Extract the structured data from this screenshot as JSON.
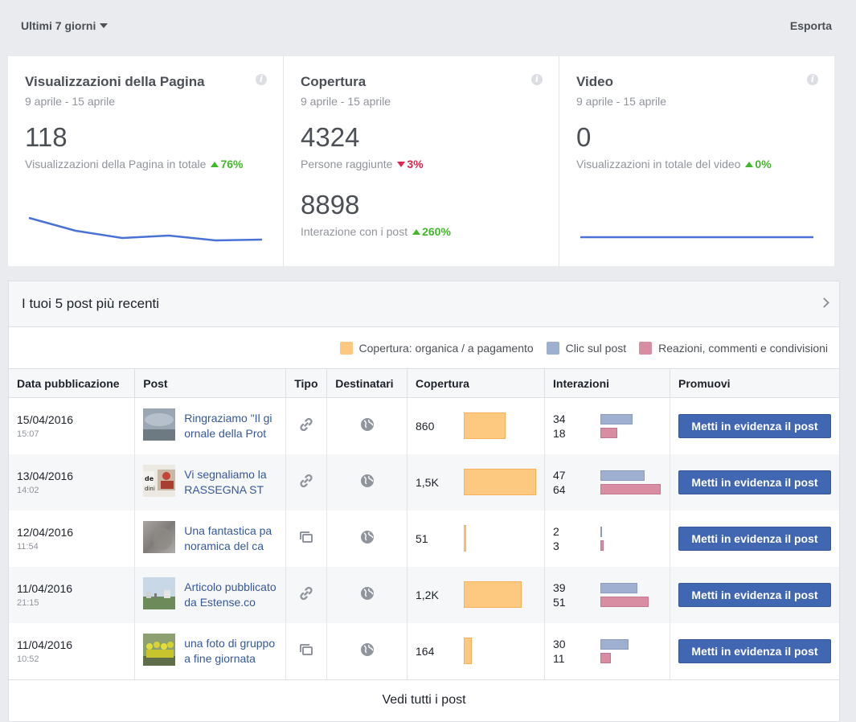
{
  "toolbar": {
    "range_label": "Ultimi 7 giorni",
    "export_label": "Esporta"
  },
  "cards": [
    {
      "title": "Visualizzazioni della Pagina",
      "date": "9 aprile - 15 aprile",
      "metrics": [
        {
          "value": "118",
          "label": "Visualizzazioni della Pagina in totale",
          "delta": "76%",
          "direction": "up"
        }
      ],
      "sparkline": [
        118,
        102,
        93,
        96,
        90,
        91
      ]
    },
    {
      "title": "Copertura",
      "date": "9 aprile - 15 aprile",
      "metrics": [
        {
          "value": "4324",
          "label": "Persone raggiunte",
          "delta": "3%",
          "direction": "down"
        },
        {
          "value": "8898",
          "label": "Interazione con i post",
          "delta": "260%",
          "direction": "up"
        }
      ]
    },
    {
      "title": "Video",
      "date": "9 aprile - 15 aprile",
      "metrics": [
        {
          "value": "0",
          "label": "Visualizzazioni in totale del video",
          "delta": "0%",
          "direction": "up"
        }
      ],
      "sparkline": [
        0,
        0,
        0,
        0,
        0,
        0
      ]
    }
  ],
  "posts": {
    "title": "I tuoi 5 post più recenti",
    "legend": [
      {
        "label": "Copertura: organica / a pagamento",
        "color": "#fdc880"
      },
      {
        "label": "Clic sul post",
        "color": "#9fafcf"
      },
      {
        "label": "Reazioni, commenti e condivisioni",
        "color": "#d88da2"
      }
    ],
    "columns": [
      "Data pubblicazione",
      "Post",
      "Tipo",
      "Destinatari",
      "Copertura",
      "Interazioni",
      "Promuovi"
    ],
    "rows": [
      {
        "date": "15/04/2016",
        "time": "15:07",
        "text": "Ringraziamo \"Il giornale della Prot",
        "thumb": "sky",
        "type": "link",
        "reach": "860",
        "reach_num": 860,
        "clicks": "34",
        "reactions": "18"
      },
      {
        "date": "13/04/2016",
        "time": "14:02",
        "text": "Vi segnaliamo la RASSEGNA ST",
        "thumb": "press",
        "type": "link",
        "reach": "1,5K",
        "reach_num": 1500,
        "clicks": "47",
        "reactions": "64"
      },
      {
        "date": "12/04/2016",
        "time": "11:54",
        "text": "Una fantastica panoramica del ca",
        "thumb": "blur",
        "type": "album",
        "reach": "51",
        "reach_num": 51,
        "clicks": "2",
        "reactions": "3"
      },
      {
        "date": "11/04/2016",
        "time": "21:15",
        "text": "Articolo pubblicato da Estense.co",
        "thumb": "landscape",
        "type": "link",
        "reach": "1,2K",
        "reach_num": 1200,
        "clicks": "39",
        "reactions": "51"
      },
      {
        "date": "11/04/2016",
        "time": "10:52",
        "text": "una foto di gruppo a fine giornata",
        "thumb": "group",
        "type": "album",
        "reach": "164",
        "reach_num": 164,
        "clicks": "30",
        "reactions": "11"
      }
    ],
    "boost_label": "Metti in evidenza il post",
    "see_all_label": "Vedi tutti i post"
  }
}
